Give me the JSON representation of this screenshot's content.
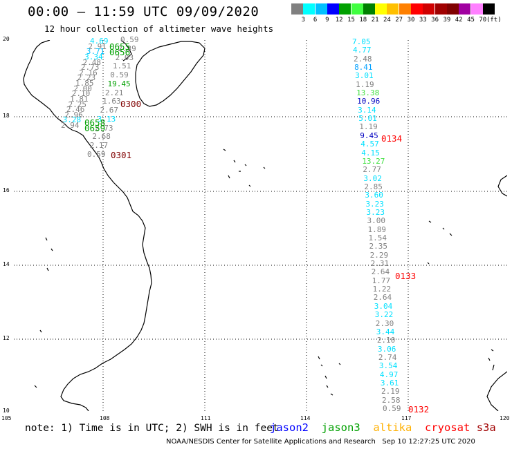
{
  "header": {
    "title": "00:00 – 11:59 UTC 09/09/2020",
    "subtitle": "12 hour collection of altimeter wave heights"
  },
  "scale": {
    "colors": [
      "#808080",
      "#00ffff",
      "#00c0ff",
      "#0000ff",
      "#00a000",
      "#40ff40",
      "#008000",
      "#ffff00",
      "#ffc000",
      "#ff8000",
      "#ff0000",
      "#d00000",
      "#a00000",
      "#800000",
      "#a000a0",
      "#ff80ff",
      "#000000"
    ],
    "labels": [
      "3",
      "6",
      "9",
      "12",
      "15",
      "18",
      "21",
      "24",
      "27",
      "30",
      "33",
      "36",
      "39",
      "42",
      "45",
      "70"
    ],
    "unit": "(ft)"
  },
  "axes": {
    "lat_labels": [
      "20",
      "18",
      "16",
      "14",
      "12",
      "10"
    ],
    "lon_labels": [
      "105",
      "108",
      "111",
      "114",
      "117",
      "120"
    ]
  },
  "tracks": [
    {
      "points": [
        {
          "v": "4.69",
          "c": "#00e0ff"
        },
        {
          "v": "2.91",
          "c": "#808080"
        },
        {
          "v": "3.71",
          "c": "#00c0ff"
        },
        {
          "v": "3.34",
          "c": "#00e0ff"
        },
        {
          "v": "2.48",
          "c": "#808080"
        },
        {
          "v": "2.73",
          "c": "#808080"
        },
        {
          "v": "2.16",
          "c": "#808080"
        },
        {
          "v": "2.23",
          "c": "#808080"
        },
        {
          "v": "1.85",
          "c": "#808080"
        },
        {
          "v": "2.00",
          "c": "#808080"
        },
        {
          "v": "2.10",
          "c": "#808080"
        },
        {
          "v": "1.81",
          "c": "#808080"
        },
        {
          "v": "2.25",
          "c": "#808080"
        },
        {
          "v": "2.46",
          "c": "#808080"
        },
        {
          "v": "2.96",
          "c": "#808080"
        },
        {
          "v": "3.28",
          "c": "#00e0ff"
        },
        {
          "v": "2.94",
          "c": "#808080"
        }
      ]
    },
    {
      "points": [
        {
          "v": "0.59",
          "c": "#808080"
        },
        {
          "v": "2.39",
          "c": "#808080"
        },
        {
          "v": "2.03",
          "c": "#808080"
        },
        {
          "v": "1.51",
          "c": "#808080"
        },
        {
          "v": "0.59",
          "c": "#808080"
        },
        {
          "v": "19.45",
          "c": "#00a000"
        },
        {
          "v": "2.21",
          "c": "#808080"
        },
        {
          "v": "1.63",
          "c": "#808080"
        },
        {
          "v": "2.67",
          "c": "#808080"
        },
        {
          "v": "3.13",
          "c": "#00e0ff"
        },
        {
          "v": "2.73",
          "c": "#808080"
        },
        {
          "v": "2.68",
          "c": "#808080"
        },
        {
          "v": "2.17",
          "c": "#808080"
        },
        {
          "v": "0.59",
          "c": "#808080"
        }
      ]
    },
    {
      "points": [
        {
          "v": "7.05",
          "c": "#00e0ff"
        },
        {
          "v": "4.77",
          "c": "#00e0ff"
        },
        {
          "v": "2.48",
          "c": "#808080"
        },
        {
          "v": "8.41",
          "c": "#00a0ff"
        },
        {
          "v": "3.01",
          "c": "#00e0ff"
        },
        {
          "v": "1.19",
          "c": "#808080"
        },
        {
          "v": "13.38",
          "c": "#40e040"
        },
        {
          "v": "10.96",
          "c": "#0000c0"
        },
        {
          "v": "3.14",
          "c": "#00e0ff"
        },
        {
          "v": "5.01",
          "c": "#00e0ff"
        },
        {
          "v": "1.19",
          "c": "#808080"
        },
        {
          "v": "9.45",
          "c": "#0000c0"
        },
        {
          "v": "4.57",
          "c": "#00e0ff"
        },
        {
          "v": "4.15",
          "c": "#00e0ff"
        },
        {
          "v": "13.27",
          "c": "#40e040"
        },
        {
          "v": "2.77",
          "c": "#808080"
        },
        {
          "v": "3.02",
          "c": "#00e0ff"
        },
        {
          "v": "2.85",
          "c": "#808080"
        },
        {
          "v": "3.60",
          "c": "#00e0ff"
        },
        {
          "v": "3.23",
          "c": "#00e0ff"
        },
        {
          "v": "3.23",
          "c": "#00e0ff"
        },
        {
          "v": "3.00",
          "c": "#808080"
        },
        {
          "v": "1.89",
          "c": "#808080"
        },
        {
          "v": "1.54",
          "c": "#808080"
        },
        {
          "v": "2.35",
          "c": "#808080"
        },
        {
          "v": "2.29",
          "c": "#808080"
        },
        {
          "v": "2.31",
          "c": "#808080"
        },
        {
          "v": "2.64",
          "c": "#808080"
        },
        {
          "v": "1.77",
          "c": "#808080"
        },
        {
          "v": "1.22",
          "c": "#808080"
        },
        {
          "v": "2.64",
          "c": "#808080"
        },
        {
          "v": "3.04",
          "c": "#00e0ff"
        },
        {
          "v": "3.22",
          "c": "#00e0ff"
        },
        {
          "v": "2.30",
          "c": "#808080"
        },
        {
          "v": "3.44",
          "c": "#00e0ff"
        },
        {
          "v": "2.10",
          "c": "#808080"
        },
        {
          "v": "3.06",
          "c": "#00e0ff"
        },
        {
          "v": "2.74",
          "c": "#808080"
        },
        {
          "v": "3.54",
          "c": "#00e0ff"
        },
        {
          "v": "4.97",
          "c": "#00e0ff"
        },
        {
          "v": "3.61",
          "c": "#00e0ff"
        },
        {
          "v": "2.19",
          "c": "#808080"
        },
        {
          "v": "2.58",
          "c": "#808080"
        },
        {
          "v": "0.59",
          "c": "#808080"
        }
      ]
    }
  ],
  "times": [
    {
      "t": "0655",
      "c": "#00a000"
    },
    {
      "t": "0656",
      "c": "#00a000"
    },
    {
      "t": "0300",
      "c": "#800000"
    },
    {
      "t": "0658",
      "c": "#00a000"
    },
    {
      "t": "0659",
      "c": "#00a000"
    },
    {
      "t": "0301",
      "c": "#800000"
    },
    {
      "t": "0134",
      "c": "#ff0000"
    },
    {
      "t": "0133",
      "c": "#ff0000"
    },
    {
      "t": "0132",
      "c": "#ff0000"
    }
  ],
  "note": "note: 1) Time is in UTC; 2) SWH is in feet",
  "satellites": [
    {
      "name": "jason2",
      "c": "#0000ff"
    },
    {
      "name": "jason3",
      "c": "#00a000"
    },
    {
      "name": "altika",
      "c": "#ffb000"
    },
    {
      "name": "cryosat",
      "c": "#ff0000"
    },
    {
      "name": "s3a",
      "c": "#a00000"
    }
  ],
  "credit": "NOAA/NESDIS Center for Satellite Applications and Research   Sep 10 12:27:25 UTC 2020"
}
